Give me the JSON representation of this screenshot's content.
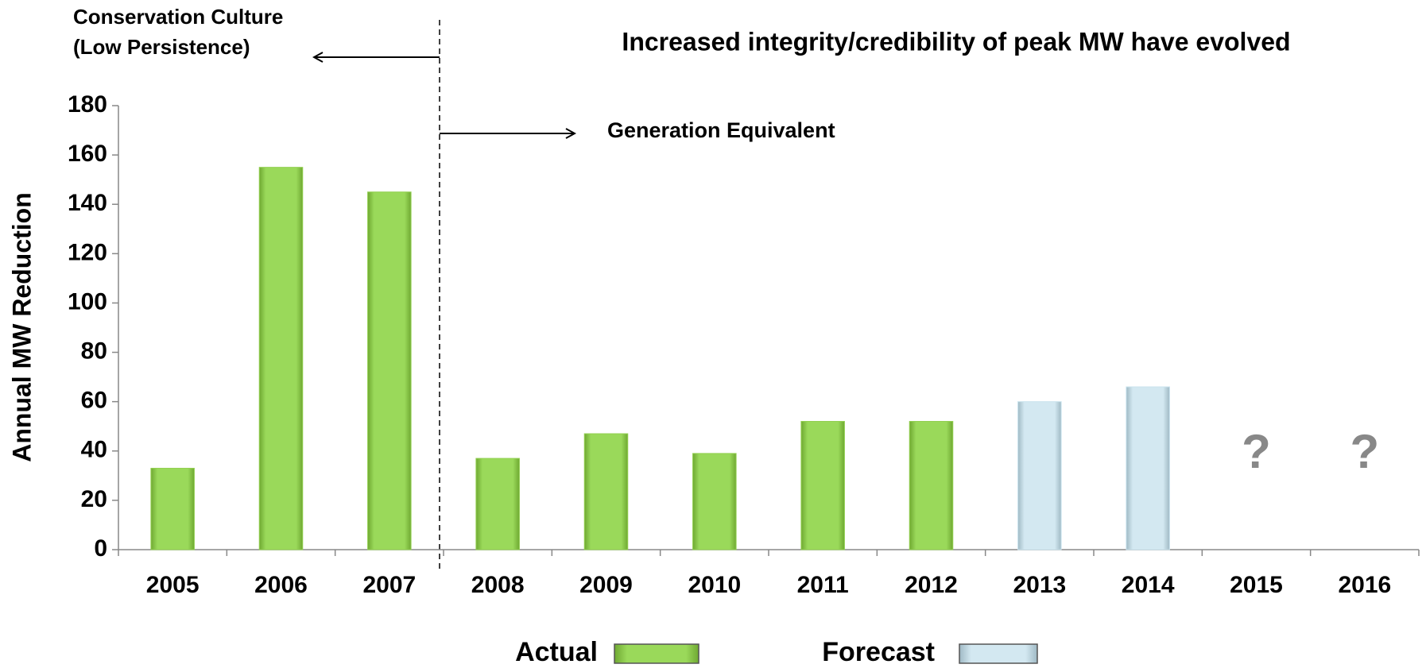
{
  "chart_data": {
    "type": "bar",
    "title": "Increased integrity/credibility of peak MW have evolved",
    "y_label": "Annual MW Reduction",
    "categories": [
      "2005",
      "2006",
      "2007",
      "2008",
      "2009",
      "2010",
      "2011",
      "2012",
      "2013",
      "2014",
      "2015",
      "2016"
    ],
    "series": [
      {
        "name": "Actual",
        "color": "#92d050",
        "values": [
          33,
          155,
          145,
          37,
          47,
          39,
          52,
          52,
          null,
          null,
          null,
          null
        ]
      },
      {
        "name": "Forecast",
        "color": "#c9e3ee",
        "values": [
          null,
          null,
          null,
          null,
          null,
          null,
          null,
          null,
          60,
          66,
          null,
          null
        ]
      }
    ],
    "ylim": [
      0,
      180
    ],
    "yticks": [
      0,
      20,
      40,
      60,
      80,
      100,
      120,
      140,
      160,
      180
    ],
    "annotations": [
      "Conservation Culture",
      "(Low Persistence)",
      "Generation Equivalent",
      "?",
      "?"
    ]
  }
}
